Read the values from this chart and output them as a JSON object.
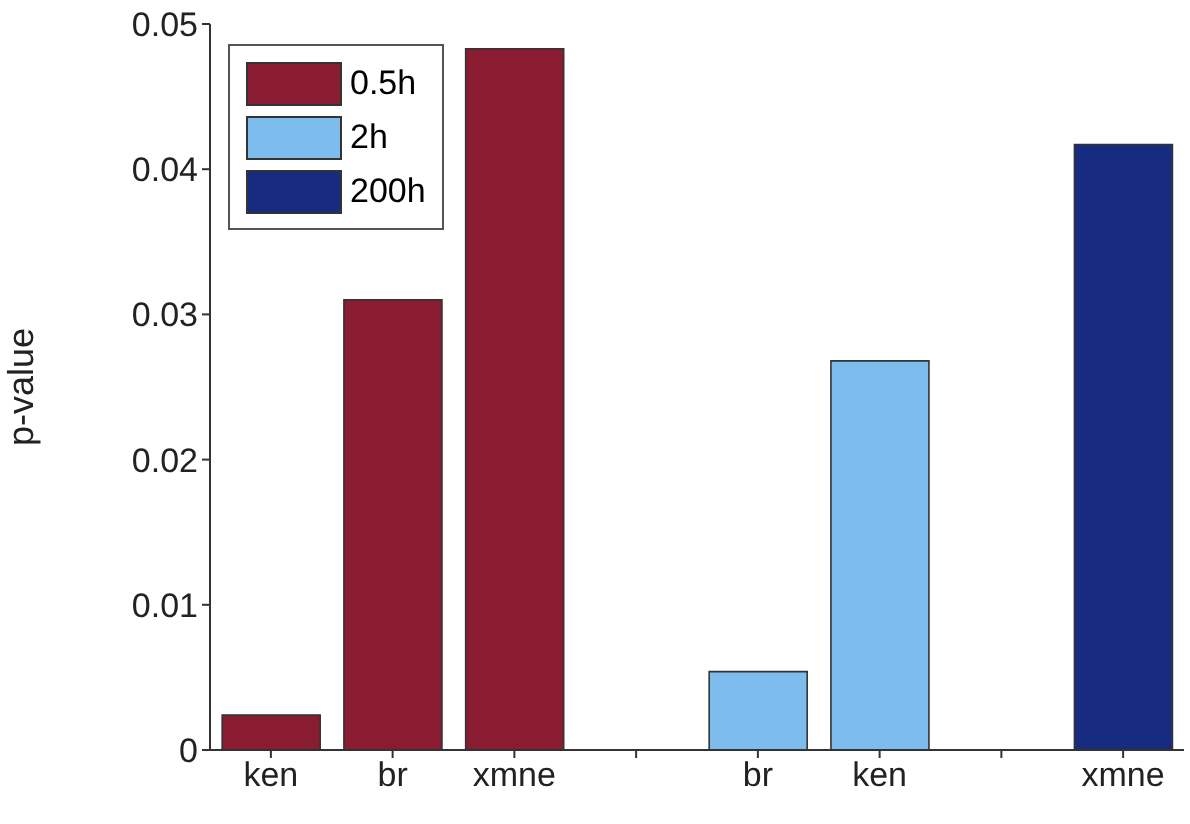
{
  "chart_data": {
    "type": "bar",
    "ylabel": "p-value",
    "categories": [
      "ken",
      "br",
      "xmne",
      null,
      "br",
      "ken",
      null,
      "xmne"
    ],
    "series": [
      {
        "name": "0.5h",
        "color": "#8a1c32",
        "values": [
          0.0024,
          0.031,
          0.0483,
          null,
          null,
          null,
          null,
          null
        ]
      },
      {
        "name": "2h",
        "color": "#7dbded",
        "values": [
          null,
          null,
          null,
          null,
          0.0054,
          0.0268,
          null,
          null
        ]
      },
      {
        "name": "200h",
        "color": "#172b80",
        "values": [
          null,
          null,
          null,
          null,
          null,
          null,
          null,
          0.0417
        ]
      }
    ],
    "ylim": [
      0,
      0.05
    ],
    "yticks": [
      0,
      0.01,
      0.02,
      0.03,
      0.04,
      0.05
    ],
    "grid": false,
    "legend": "top left"
  }
}
